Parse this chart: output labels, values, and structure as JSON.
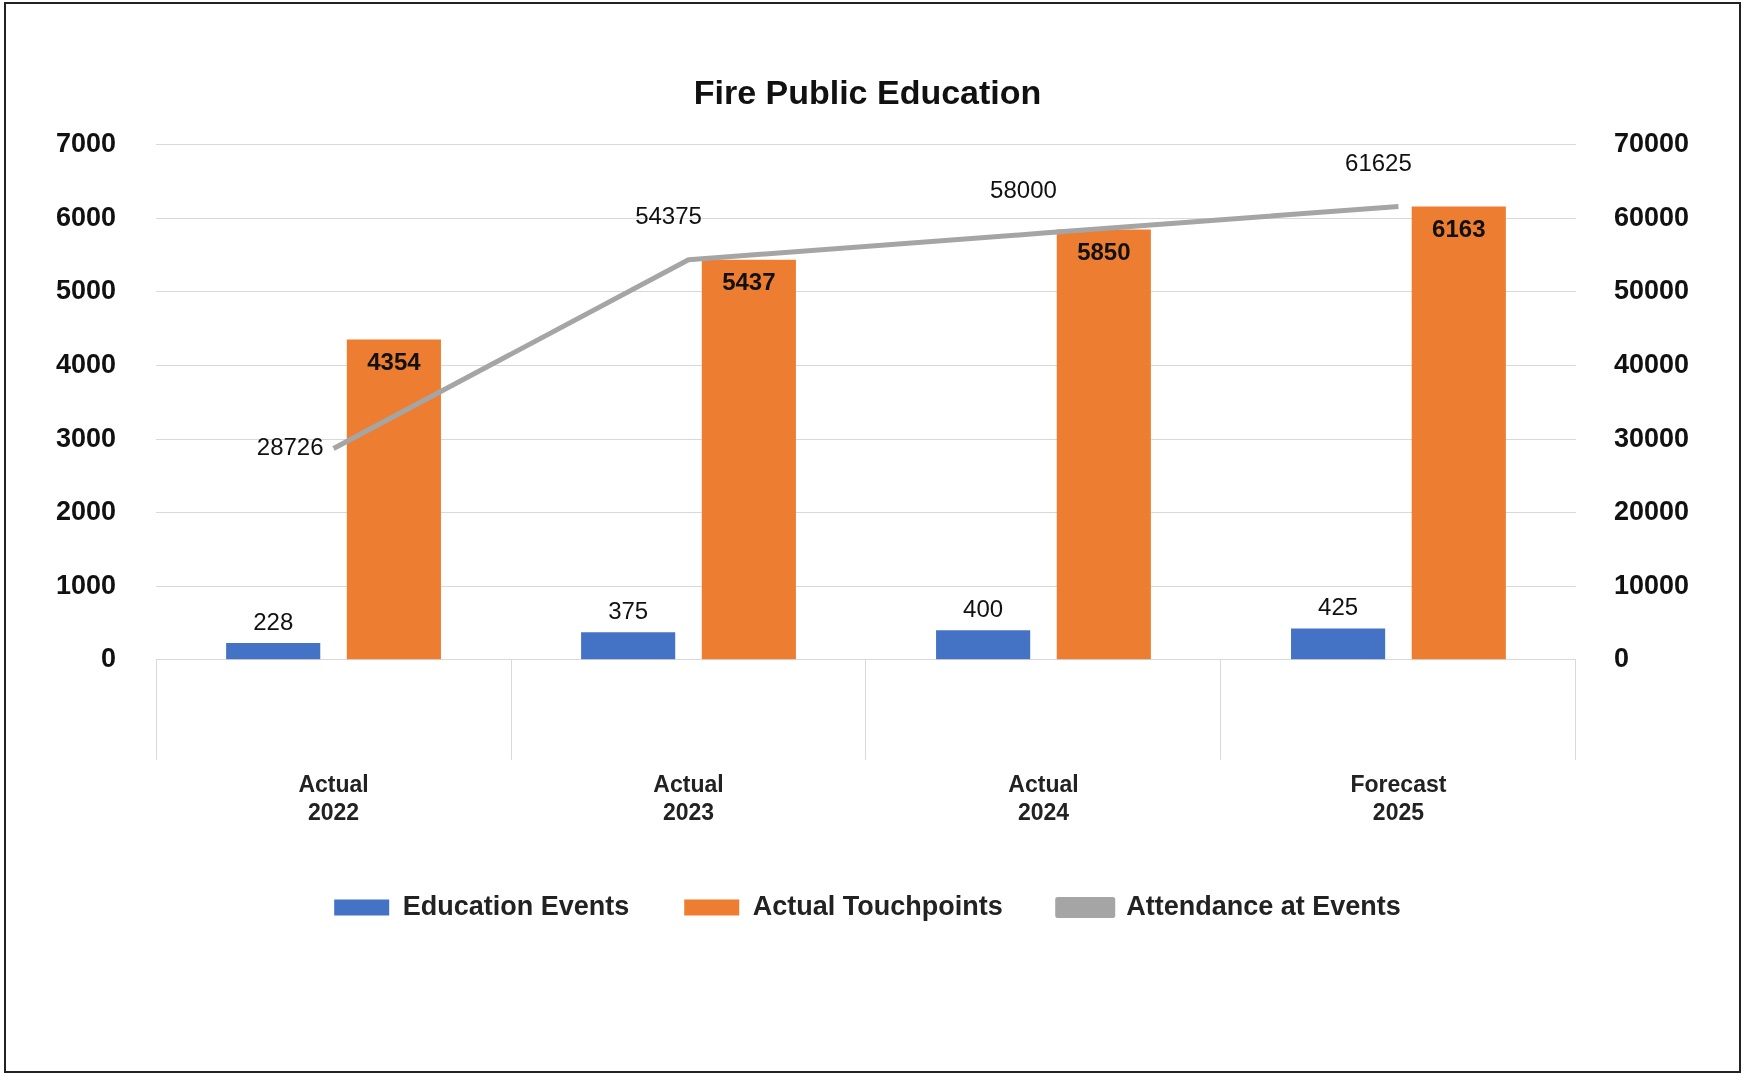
{
  "chart_data": {
    "type": "bar",
    "title": "Fire Public Education",
    "categories": [
      "Actual\n2022",
      "Actual\n2023",
      "Actual\n2024",
      "Forecast\n2025"
    ],
    "series": [
      {
        "name": "Education Events",
        "color": "#4472c4",
        "values": [
          228,
          375,
          400,
          425
        ]
      },
      {
        "name": "Actual Touchpoints",
        "color": "#ed7d31",
        "values": [
          4354,
          5437,
          5850,
          6163
        ]
      },
      {
        "name": "Attendance at Events",
        "color": "#a5a5a5",
        "type": "line",
        "axis": "y2",
        "values": [
          28726,
          54375,
          58000,
          61625
        ]
      }
    ],
    "ylim": [
      0,
      7000
    ],
    "yticks": [
      0,
      1000,
      2000,
      3000,
      4000,
      5000,
      6000,
      7000
    ],
    "y2lim": [
      0,
      70000
    ],
    "y2ticks": [
      0,
      10000,
      20000,
      30000,
      40000,
      50000,
      60000,
      70000
    ],
    "grid": "y",
    "legend": "bottom",
    "data_labels": true,
    "marker": "none"
  }
}
